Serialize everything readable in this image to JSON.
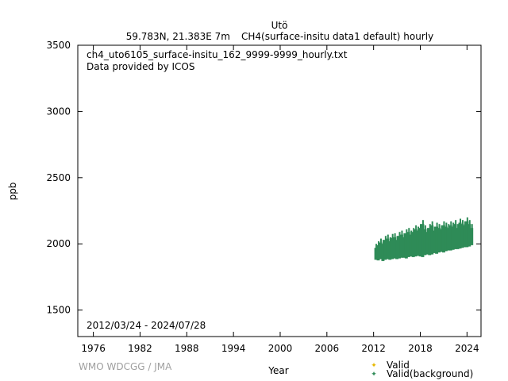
{
  "chart_data": {
    "type": "scatter",
    "title": "Utö",
    "subtitle_left": "59.783N, 21.383E 7m",
    "subtitle_right": "CH4(surface-insitu data1 default) hourly",
    "annotation_file": "ch4_uto6105_surface-insitu_162_9999-9999_hourly.txt",
    "annotation_provider": "Data provided by ICOS",
    "annotation_period": "2012/03/24 - 2024/07/28",
    "credit": "WMO WDCGG / JMA",
    "xlabel": "Year",
    "ylabel": "ppb",
    "xlim": [
      1974,
      2025.8
    ],
    "ylim": [
      1300,
      3500
    ],
    "xticks": [
      1976,
      1982,
      1988,
      1994,
      2000,
      2006,
      2012,
      2018,
      2024
    ],
    "yticks": [
      1500,
      2000,
      2500,
      3000,
      3500
    ],
    "grid": false,
    "legend_placement": "bottom-right, below plot",
    "series": [
      {
        "name": "Valid",
        "color": "#e6b800",
        "x": [],
        "y_low": [],
        "y_high": []
      },
      {
        "name": "Valid(background)",
        "color": "#2e8b57",
        "x": [
          2012.2,
          2012.5,
          2012.8,
          2013.1,
          2013.4,
          2013.7,
          2014.0,
          2014.3,
          2014.6,
          2014.9,
          2015.2,
          2015.5,
          2015.8,
          2016.1,
          2016.4,
          2016.7,
          2017.0,
          2017.3,
          2017.6,
          2017.9,
          2018.2,
          2018.5,
          2018.8,
          2019.1,
          2019.4,
          2019.7,
          2020.0,
          2020.3,
          2020.6,
          2020.9,
          2021.2,
          2021.5,
          2021.8,
          2022.1,
          2022.4,
          2022.7,
          2023.0,
          2023.3,
          2023.6,
          2023.9,
          2024.2,
          2024.5
        ],
        "y_low": [
          1880,
          1875,
          1885,
          1870,
          1880,
          1885,
          1880,
          1885,
          1890,
          1885,
          1890,
          1895,
          1895,
          1890,
          1900,
          1905,
          1900,
          1905,
          1910,
          1905,
          1900,
          1915,
          1920,
          1915,
          1920,
          1930,
          1925,
          1935,
          1940,
          1935,
          1945,
          1950,
          1950,
          1955,
          1960,
          1960,
          1965,
          1970,
          1975,
          1975,
          1980,
          1990
        ],
        "y_high": [
          1970,
          1990,
          2010,
          2000,
          2030,
          2040,
          2020,
          2045,
          2050,
          2030,
          2060,
          2070,
          2050,
          2080,
          2090,
          2070,
          2090,
          2110,
          2100,
          2120,
          2150,
          2110,
          2090,
          2120,
          2140,
          2100,
          2130,
          2120,
          2110,
          2140,
          2130,
          2120,
          2140,
          2130,
          2150,
          2120,
          2160,
          2150,
          2140,
          2170,
          2150,
          2120
        ]
      }
    ]
  }
}
